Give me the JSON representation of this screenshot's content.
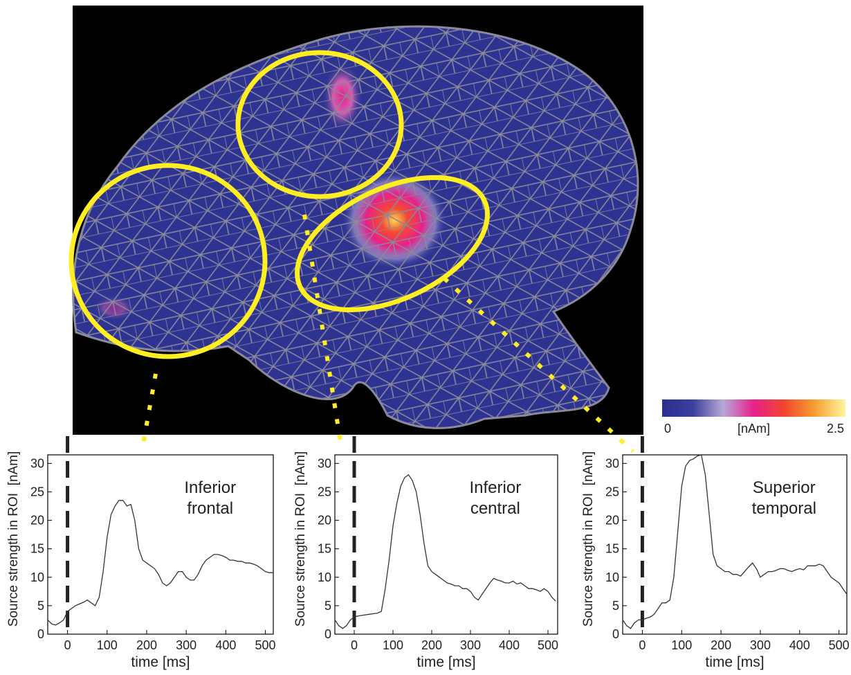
{
  "chart_data": [
    {
      "type": "line",
      "annotation": [
        "Inferior",
        "frontal"
      ],
      "xlabel": "time [ms]",
      "ylabel": "Source strength in ROI  [nAm]",
      "x": [
        -50,
        -40,
        -30,
        -20,
        -10,
        0,
        10,
        20,
        30,
        40,
        50,
        60,
        70,
        80,
        90,
        100,
        110,
        120,
        130,
        140,
        150,
        160,
        170,
        180,
        190,
        200,
        210,
        220,
        230,
        240,
        250,
        260,
        270,
        280,
        290,
        300,
        310,
        320,
        330,
        340,
        350,
        360,
        370,
        380,
        390,
        400,
        410,
        420,
        430,
        440,
        450,
        460,
        470,
        480,
        490,
        500,
        510,
        520
      ],
      "values": [
        2.5,
        1.8,
        1.6,
        2,
        2.5,
        4,
        4.5,
        5,
        5.3,
        5.6,
        6,
        5.5,
        5,
        6.5,
        11,
        17,
        21,
        22.5,
        23.5,
        23.5,
        22.5,
        22.8,
        20,
        15,
        13,
        12.5,
        12,
        11.5,
        10.5,
        9,
        8.5,
        9,
        10,
        11,
        11,
        10,
        9.5,
        9.5,
        10.5,
        12,
        13,
        13.5,
        14,
        14,
        13.8,
        13.5,
        13,
        13,
        12.8,
        12.8,
        12.5,
        12.5,
        12.3,
        12,
        11.5,
        11,
        10.8,
        10.8
      ],
      "color": "#333333",
      "vline": 0,
      "xlim": [
        -50,
        520
      ],
      "ylim": [
        0,
        31.5
      ],
      "xticks": [
        0,
        100,
        200,
        300,
        400,
        500
      ],
      "yticks": [
        0,
        5,
        10,
        15,
        20,
        25,
        30
      ]
    },
    {
      "type": "line",
      "annotation": [
        "Inferior",
        "central"
      ],
      "xlabel": "time [ms]",
      "ylabel": "Source strength in ROI  [nAm]",
      "x": [
        -50,
        -40,
        -30,
        -20,
        -10,
        0,
        10,
        20,
        30,
        40,
        50,
        60,
        70,
        80,
        90,
        100,
        110,
        120,
        130,
        140,
        150,
        160,
        170,
        180,
        190,
        200,
        210,
        220,
        230,
        240,
        250,
        260,
        270,
        280,
        290,
        300,
        310,
        320,
        330,
        340,
        350,
        360,
        370,
        380,
        390,
        400,
        410,
        420,
        430,
        440,
        450,
        460,
        470,
        480,
        490,
        500,
        510,
        520
      ],
      "values": [
        2.5,
        1.5,
        1,
        1.5,
        2.5,
        3,
        3.2,
        3.3,
        3.4,
        3.5,
        3.6,
        3.7,
        4,
        8,
        13,
        19,
        23,
        26,
        27.5,
        28,
        27,
        25,
        21,
        16,
        12,
        11,
        10.5,
        10,
        9.5,
        9,
        8.8,
        8.5,
        8.5,
        8,
        8,
        7.5,
        6.5,
        6,
        7,
        8,
        9,
        9.8,
        9.5,
        9.3,
        9,
        9,
        9.3,
        8.8,
        9,
        8.5,
        8,
        8,
        7.8,
        7.5,
        8,
        7.5,
        6.5,
        5.8
      ],
      "color": "#333333",
      "vline": 0,
      "xlim": [
        -50,
        525
      ],
      "ylim": [
        0,
        31.5
      ],
      "xticks": [
        0,
        100,
        200,
        300,
        400,
        500
      ],
      "yticks": [
        0,
        5,
        10,
        15,
        20,
        25,
        30
      ]
    },
    {
      "type": "line",
      "annotation": [
        "Superior",
        "temporal"
      ],
      "xlabel": "time [ms]",
      "ylabel": "Source strength in ROI  [nAm]",
      "x": [
        -50,
        -40,
        -30,
        -20,
        -10,
        0,
        10,
        20,
        30,
        40,
        50,
        60,
        70,
        80,
        90,
        100,
        110,
        120,
        130,
        140,
        150,
        160,
        170,
        180,
        190,
        200,
        210,
        220,
        230,
        240,
        250,
        260,
        270,
        280,
        290,
        300,
        310,
        320,
        330,
        340,
        350,
        360,
        370,
        380,
        390,
        400,
        410,
        420,
        430,
        440,
        450,
        460,
        470,
        480,
        490,
        500,
        510,
        520
      ],
      "values": [
        2.5,
        1.5,
        1,
        2,
        2.5,
        2.5,
        2.8,
        3,
        3.5,
        4.5,
        5.5,
        5.5,
        6,
        10,
        18,
        26,
        29.5,
        30.5,
        30.8,
        31.3,
        31.5,
        28,
        21,
        14,
        12,
        11.5,
        11,
        11,
        10.5,
        10.5,
        10.2,
        11,
        11.8,
        12.5,
        11.5,
        10,
        10.5,
        11,
        11,
        11.2,
        11.5,
        11.5,
        11.2,
        11,
        11.3,
        11.5,
        11.3,
        12,
        12,
        12,
        12.3,
        12,
        11,
        10,
        9.5,
        9,
        8,
        7
      ],
      "color": "#333333",
      "vline": 0,
      "xlim": [
        -50,
        520
      ],
      "ylim": [
        0,
        31.5
      ],
      "xticks": [
        0,
        100,
        200,
        300,
        400,
        500
      ],
      "yticks": [
        0,
        5,
        10,
        15,
        20,
        25,
        30
      ]
    }
  ],
  "colorbar": {
    "min": 0,
    "max": 2.5,
    "label": "[nAm]",
    "colors": [
      "#2b2f8f",
      "#3a3e9e",
      "#b7a8d8",
      "#e8208a",
      "#f2452e",
      "#f7a030",
      "#fff6a0"
    ]
  }
}
